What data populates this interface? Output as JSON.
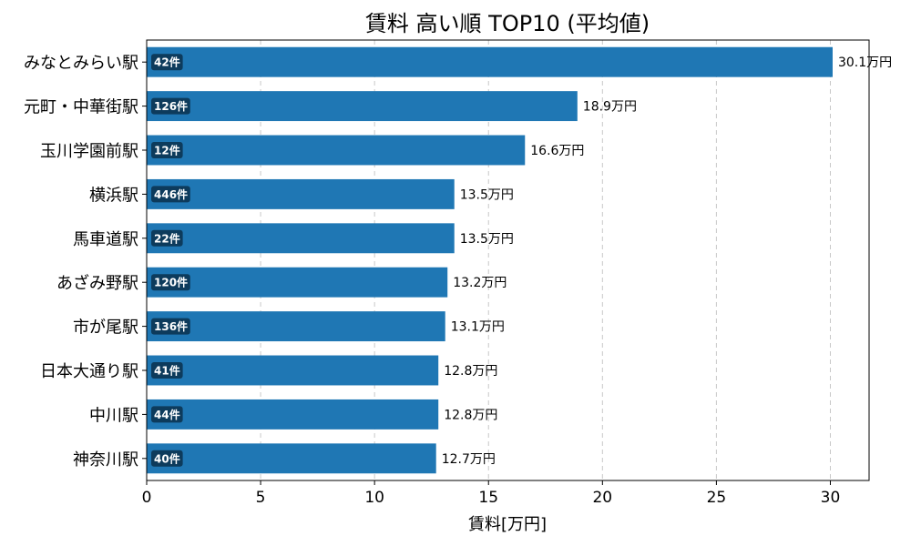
{
  "chart_data": {
    "type": "bar",
    "orientation": "horizontal",
    "title": "賃料 高い順 TOP10 (平均値)",
    "xlabel": "賃料[万円]",
    "ylabel": "",
    "xlim": [
      0,
      31.7
    ],
    "xticks": [
      0,
      5,
      10,
      15,
      20,
      25,
      30
    ],
    "grid": "x",
    "categories": [
      "みなとみらい駅",
      "元町・中華街駅",
      "玉川学園前駅",
      "横浜駅",
      "馬車道駅",
      "あざみ野駅",
      "市が尾駅",
      "日本大通り駅",
      "中川駅",
      "神奈川駅"
    ],
    "values": [
      30.1,
      18.9,
      16.6,
      13.5,
      13.5,
      13.2,
      13.1,
      12.8,
      12.8,
      12.7
    ],
    "value_labels": [
      "30.1万円",
      "18.9万円",
      "16.6万円",
      "13.5万円",
      "13.5万円",
      "13.2万円",
      "13.1万円",
      "12.8万円",
      "12.8万円",
      "12.7万円"
    ],
    "counts": [
      "42件",
      "126件",
      "12件",
      "446件",
      "22件",
      "120件",
      "136件",
      "41件",
      "44件",
      "40件"
    ],
    "colors": {
      "bar": "#1f77b4",
      "badge": "#0d3b5c"
    }
  }
}
